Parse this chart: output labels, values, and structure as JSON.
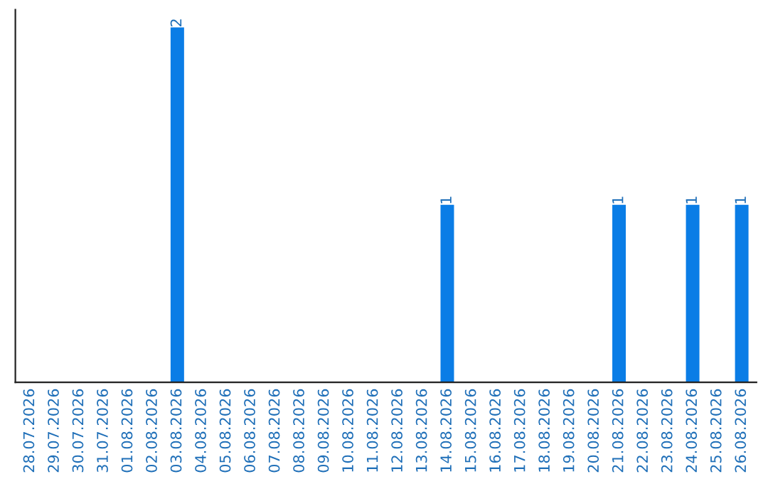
{
  "chart_data": {
    "type": "bar",
    "categories": [
      "28.07.2026",
      "29.07.2026",
      "30.07.2026",
      "31.07.2026",
      "01.08.2026",
      "02.08.2026",
      "03.08.2026",
      "04.08.2026",
      "05.08.2026",
      "06.08.2026",
      "07.08.2026",
      "08.08.2026",
      "09.08.2026",
      "10.08.2026",
      "11.08.2026",
      "12.08.2026",
      "13.08.2026",
      "14.08.2026",
      "15.08.2026",
      "16.08.2026",
      "17.08.2026",
      "18.08.2026",
      "19.08.2026",
      "20.08.2026",
      "21.08.2026",
      "22.08.2026",
      "23.08.2026",
      "24.08.2026",
      "25.08.2026",
      "26.08.2026"
    ],
    "values": [
      0,
      0,
      0,
      0,
      0,
      0,
      2,
      0,
      0,
      0,
      0,
      0,
      0,
      0,
      0,
      0,
      0,
      1,
      0,
      0,
      0,
      0,
      0,
      0,
      1,
      0,
      0,
      1,
      0,
      1
    ],
    "value_labels": [
      null,
      null,
      null,
      null,
      null,
      null,
      "2",
      null,
      null,
      null,
      null,
      null,
      null,
      null,
      null,
      null,
      null,
      "1",
      null,
      null,
      null,
      null,
      null,
      null,
      "1",
      null,
      null,
      "1",
      null,
      "1"
    ],
    "color": "#0a7de6",
    "tick_labels": "x",
    "grid": false,
    "legend": false
  }
}
